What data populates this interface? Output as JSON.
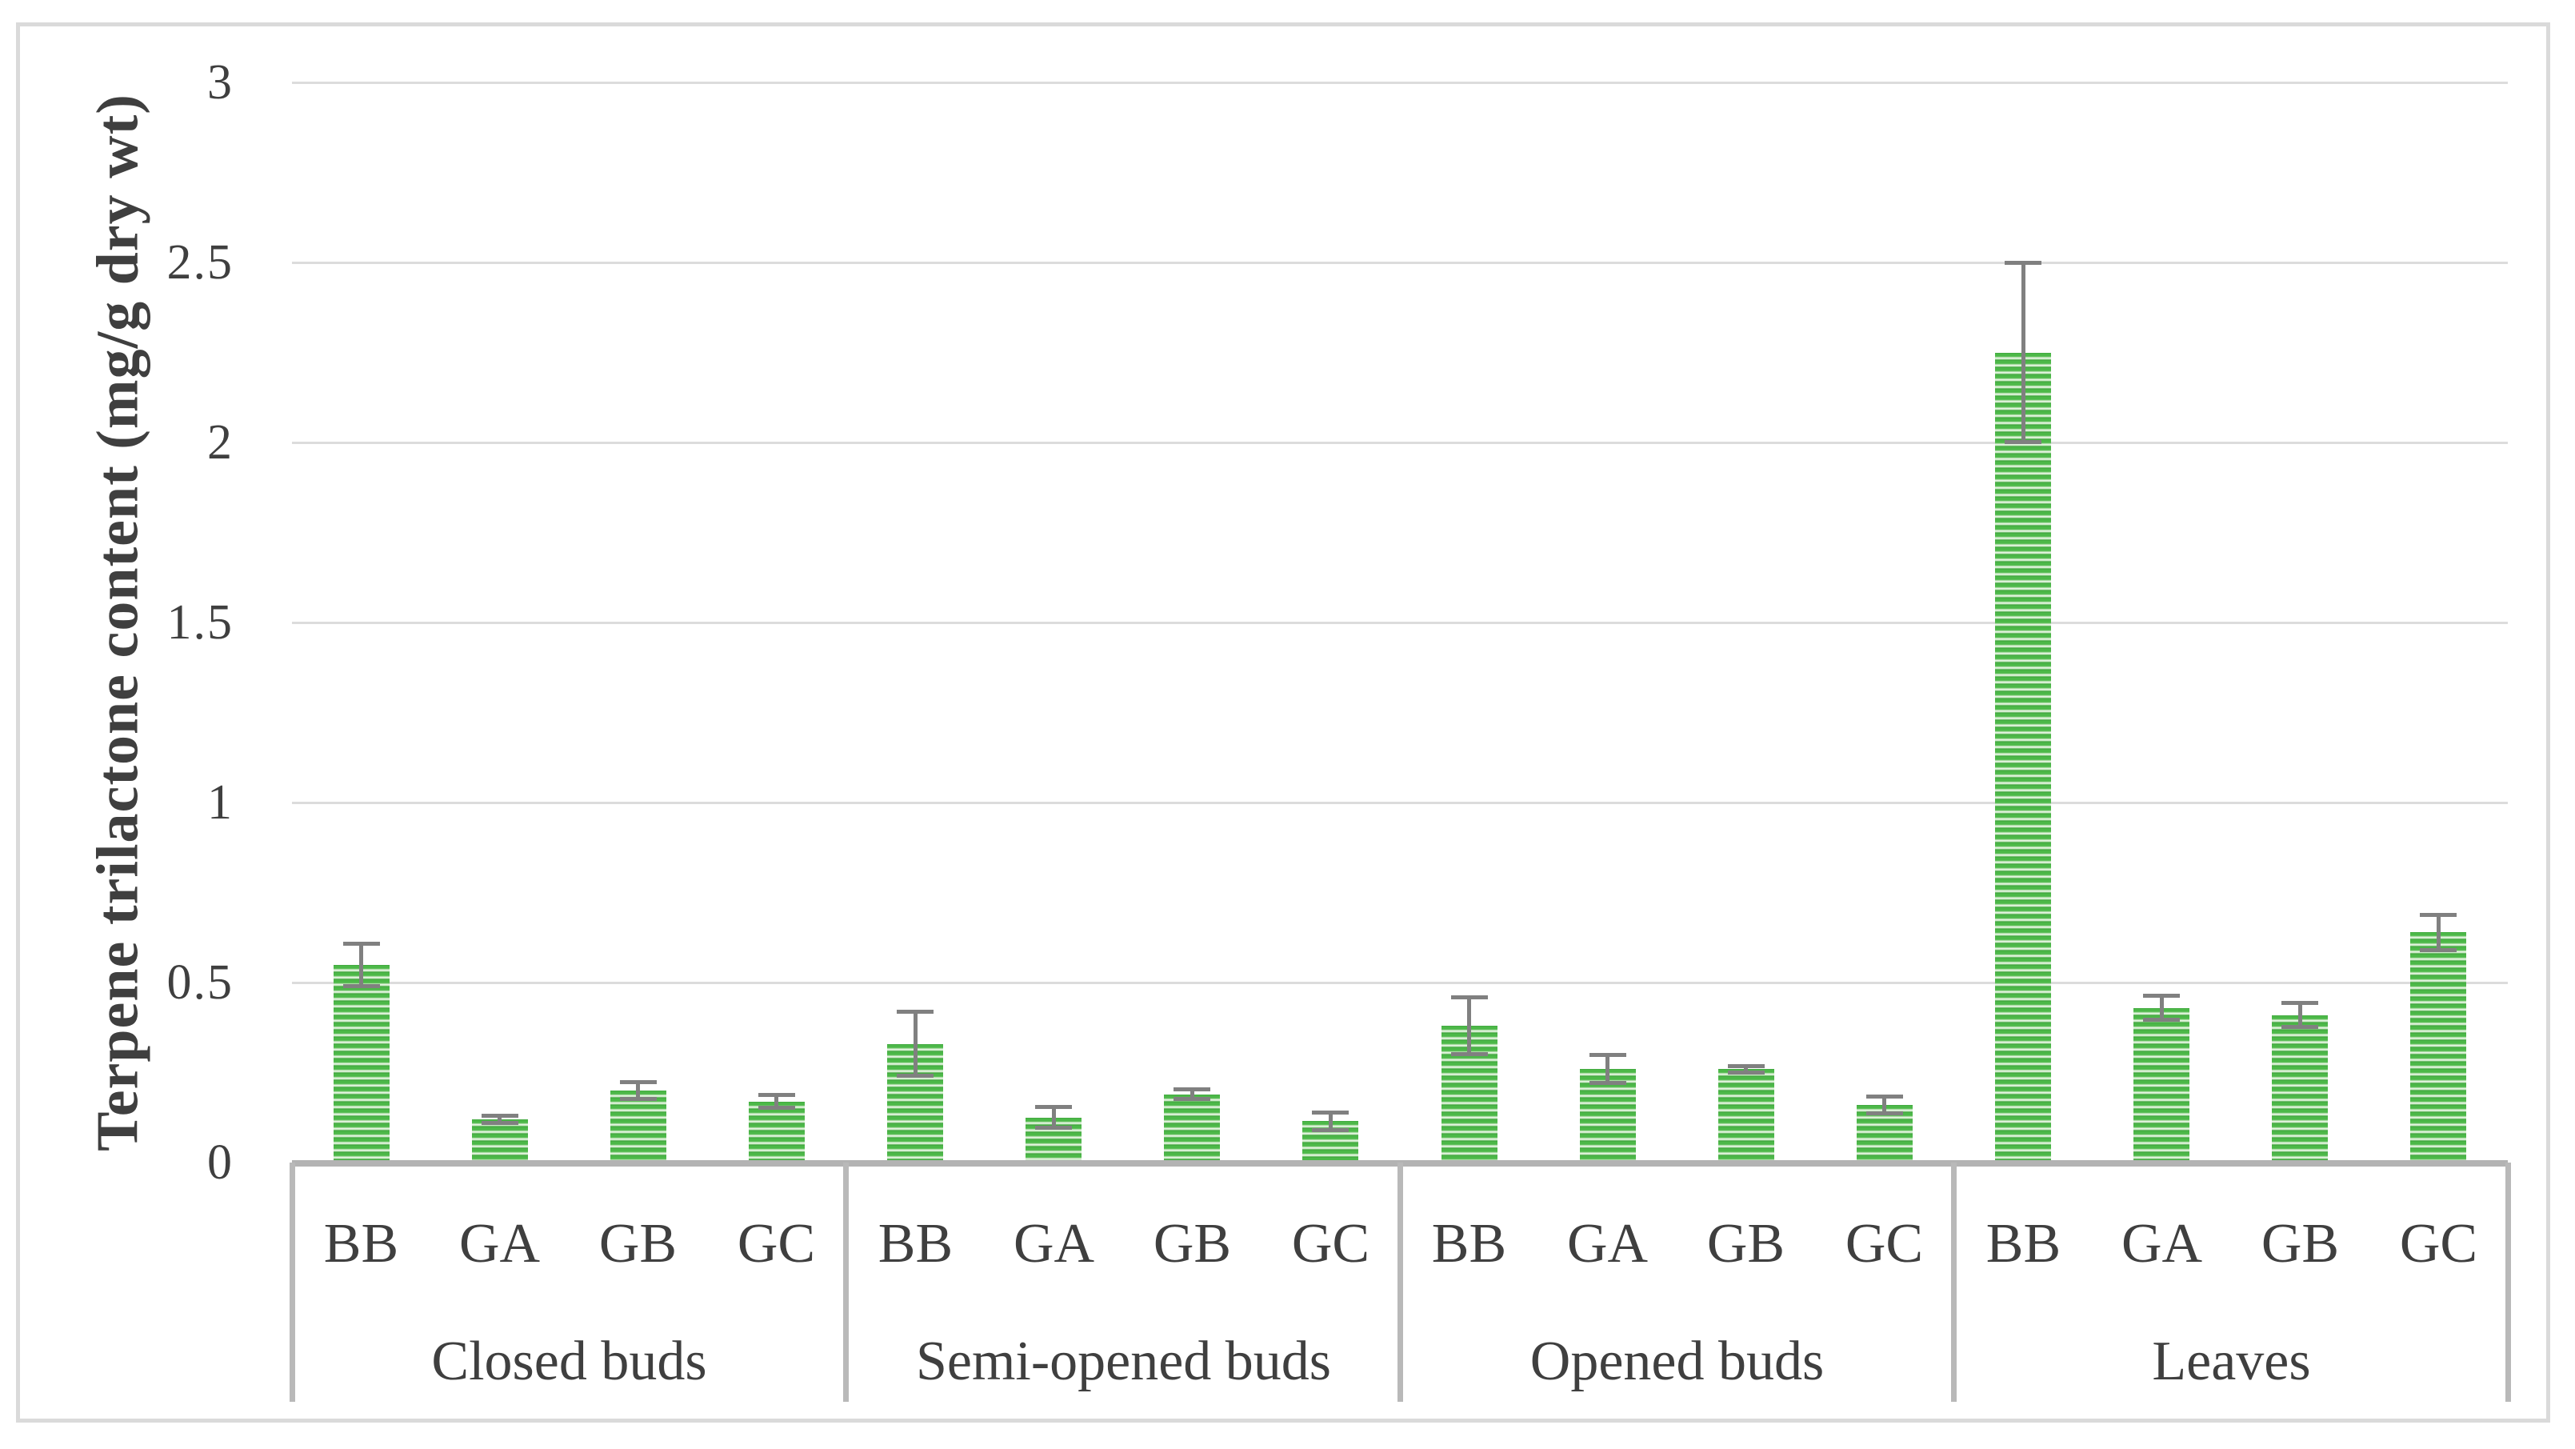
{
  "chart_data": {
    "type": "bar",
    "title": "",
    "xlabel": "",
    "ylabel": "Terpene trilactone content (mg/g dry wt)",
    "ylim": [
      0,
      3
    ],
    "grid": true,
    "legend": "none",
    "bar_pattern": "horizontal-stripes",
    "ytick_values": [
      0,
      0.5,
      1,
      1.5,
      2,
      2.5,
      3
    ],
    "ytick_labels": [
      "0",
      "0.5",
      "1",
      "1.5",
      "2",
      "2.5",
      "3"
    ],
    "groups": [
      {
        "label": "Closed buds",
        "categories": [
          "BB",
          "GA",
          "GB",
          "GC"
        ],
        "values": [
          0.55,
          0.12,
          0.2,
          0.17
        ],
        "errors": [
          0.06,
          0.012,
          0.025,
          0.018
        ]
      },
      {
        "label": "Semi-opened buds",
        "categories": [
          "BB",
          "GA",
          "GB",
          "GC"
        ],
        "values": [
          0.33,
          0.125,
          0.19,
          0.115
        ],
        "errors": [
          0.09,
          0.03,
          0.015,
          0.025
        ]
      },
      {
        "label": "Opened buds",
        "categories": [
          "BB",
          "GA",
          "GB",
          "GC"
        ],
        "values": [
          0.38,
          0.26,
          0.26,
          0.16
        ],
        "errors": [
          0.08,
          0.04,
          0.01,
          0.025
        ]
      },
      {
        "label": "Leaves",
        "categories": [
          "BB",
          "GA",
          "GB",
          "GC"
        ],
        "values": [
          2.25,
          0.43,
          0.41,
          0.64
        ],
        "errors": [
          0.25,
          0.035,
          0.035,
          0.05
        ]
      }
    ],
    "colors": {
      "bar_green": "#4cb848",
      "bar_stripe_light": "#f3fbf1",
      "error_bar": "#808080",
      "gridline": "#dcdcdc",
      "axis_line": "#b3b3b3",
      "figure_border": "#dadada",
      "text": "#3f3f3f"
    }
  }
}
